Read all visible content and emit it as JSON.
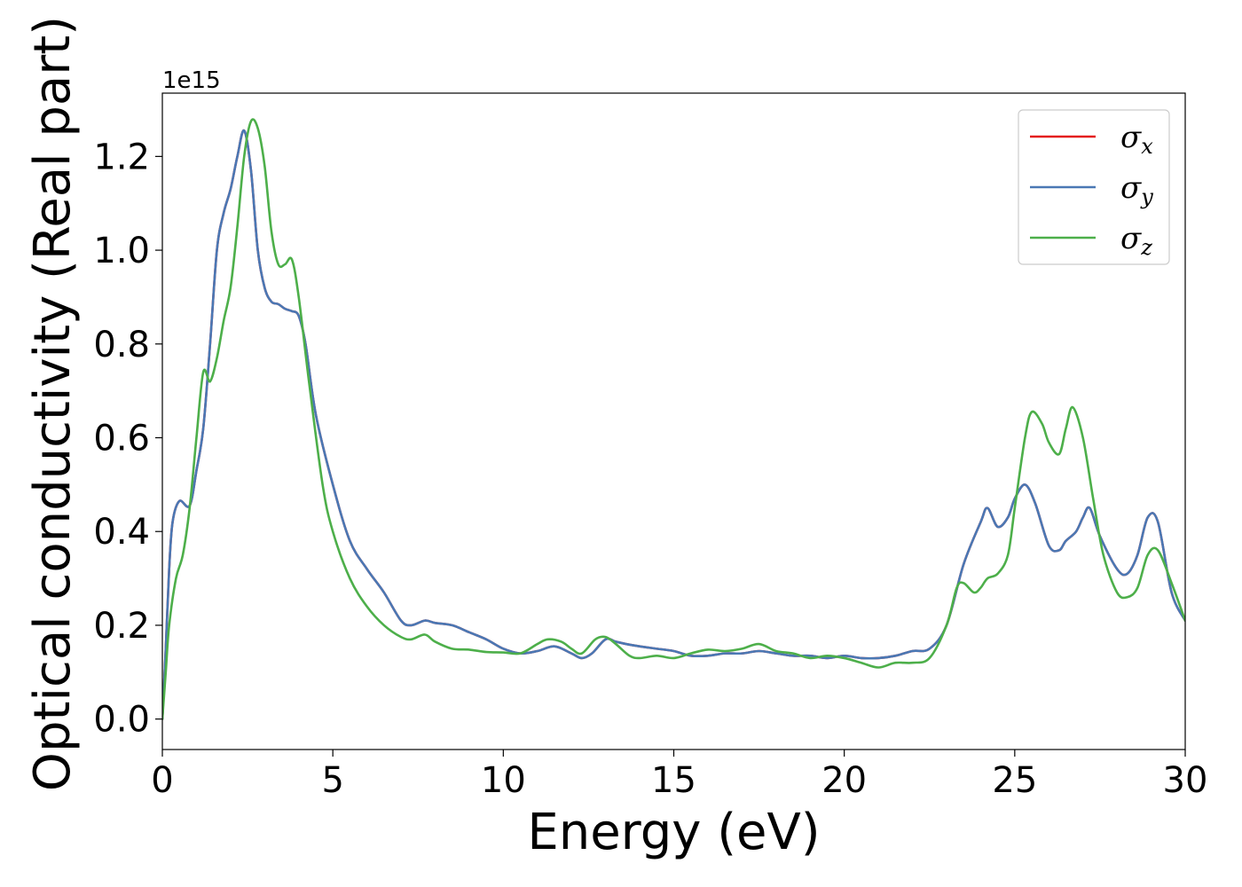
{
  "chart_data": {
    "type": "line",
    "title": "",
    "xlabel": "Energy (eV)",
    "ylabel": "Optical conductivity (Real part)",
    "y_offset_label": "1e15",
    "xlim": [
      0,
      30
    ],
    "ylim": [
      -0.065,
      1.335
    ],
    "xticks": [
      0,
      5,
      10,
      15,
      20,
      25,
      30
    ],
    "xtick_labels": [
      "0",
      "5",
      "10",
      "15",
      "20",
      "25",
      "30"
    ],
    "yticks": [
      0.0,
      0.2,
      0.4,
      0.6,
      0.8,
      1.0,
      1.2
    ],
    "ytick_labels": [
      "0.0",
      "0.2",
      "0.4",
      "0.6",
      "0.8",
      "1.0",
      "1.2"
    ],
    "grid": false,
    "legend_position": "top-right",
    "series": [
      {
        "name": "σx",
        "legend_symbol": "σ",
        "legend_sub": "x",
        "color": "#e41a1c",
        "x": [
          0,
          0.1,
          0.2,
          0.3,
          0.5,
          0.8,
          1.0,
          1.2,
          1.4,
          1.6,
          1.8,
          2.0,
          2.2,
          2.4,
          2.6,
          2.8,
          3.0,
          3.2,
          3.4,
          3.6,
          3.8,
          4.0,
          4.2,
          4.5,
          5.0,
          5.5,
          6.0,
          6.5,
          7.0,
          7.3,
          7.7,
          8.0,
          8.5,
          9.0,
          9.5,
          10.0,
          10.5,
          11.0,
          11.5,
          12.0,
          12.3,
          12.6,
          13.0,
          13.3,
          13.6,
          14.0,
          14.5,
          15.0,
          15.5,
          16.0,
          16.5,
          17.0,
          17.5,
          18.0,
          18.5,
          19.0,
          19.5,
          20.0,
          20.5,
          21.0,
          21.5,
          22.0,
          22.5,
          23.0,
          23.5,
          24.0,
          24.2,
          24.5,
          24.8,
          25.0,
          25.3,
          25.6,
          26.0,
          26.3,
          26.5,
          26.8,
          27.0,
          27.2,
          27.5,
          28.0,
          28.3,
          28.6,
          28.9,
          29.2,
          29.6,
          30.0
        ],
        "y": [
          0.0,
          0.15,
          0.32,
          0.42,
          0.465,
          0.455,
          0.53,
          0.62,
          0.8,
          1.0,
          1.08,
          1.13,
          1.2,
          1.255,
          1.17,
          1.0,
          0.92,
          0.89,
          0.885,
          0.875,
          0.87,
          0.86,
          0.8,
          0.65,
          0.5,
          0.38,
          0.32,
          0.27,
          0.21,
          0.2,
          0.21,
          0.205,
          0.2,
          0.185,
          0.17,
          0.15,
          0.14,
          0.145,
          0.155,
          0.14,
          0.13,
          0.14,
          0.17,
          0.165,
          0.16,
          0.155,
          0.15,
          0.145,
          0.135,
          0.135,
          0.14,
          0.14,
          0.145,
          0.14,
          0.135,
          0.135,
          0.13,
          0.135,
          0.13,
          0.13,
          0.135,
          0.145,
          0.15,
          0.2,
          0.33,
          0.42,
          0.45,
          0.41,
          0.43,
          0.47,
          0.5,
          0.46,
          0.37,
          0.36,
          0.38,
          0.4,
          0.43,
          0.45,
          0.39,
          0.32,
          0.31,
          0.35,
          0.43,
          0.42,
          0.27,
          0.21
        ]
      },
      {
        "name": "σy",
        "legend_symbol": "σ",
        "legend_sub": "y",
        "color": "#4a78b4",
        "x": [
          0,
          0.1,
          0.2,
          0.3,
          0.5,
          0.8,
          1.0,
          1.2,
          1.4,
          1.6,
          1.8,
          2.0,
          2.2,
          2.4,
          2.6,
          2.8,
          3.0,
          3.2,
          3.4,
          3.6,
          3.8,
          4.0,
          4.2,
          4.5,
          5.0,
          5.5,
          6.0,
          6.5,
          7.0,
          7.3,
          7.7,
          8.0,
          8.5,
          9.0,
          9.5,
          10.0,
          10.5,
          11.0,
          11.5,
          12.0,
          12.3,
          12.6,
          13.0,
          13.3,
          13.6,
          14.0,
          14.5,
          15.0,
          15.5,
          16.0,
          16.5,
          17.0,
          17.5,
          18.0,
          18.5,
          19.0,
          19.5,
          20.0,
          20.5,
          21.0,
          21.5,
          22.0,
          22.5,
          23.0,
          23.5,
          24.0,
          24.2,
          24.5,
          24.8,
          25.0,
          25.3,
          25.6,
          26.0,
          26.3,
          26.5,
          26.8,
          27.0,
          27.2,
          27.5,
          28.0,
          28.3,
          28.6,
          28.9,
          29.2,
          29.6,
          30.0
        ],
        "y": [
          0.0,
          0.15,
          0.32,
          0.42,
          0.465,
          0.455,
          0.53,
          0.62,
          0.8,
          1.0,
          1.08,
          1.13,
          1.2,
          1.255,
          1.17,
          1.0,
          0.92,
          0.89,
          0.885,
          0.875,
          0.87,
          0.86,
          0.8,
          0.65,
          0.5,
          0.38,
          0.32,
          0.27,
          0.21,
          0.2,
          0.21,
          0.205,
          0.2,
          0.185,
          0.17,
          0.15,
          0.14,
          0.145,
          0.155,
          0.14,
          0.13,
          0.14,
          0.17,
          0.165,
          0.16,
          0.155,
          0.15,
          0.145,
          0.135,
          0.135,
          0.14,
          0.14,
          0.145,
          0.14,
          0.135,
          0.135,
          0.13,
          0.135,
          0.13,
          0.13,
          0.135,
          0.145,
          0.15,
          0.2,
          0.33,
          0.42,
          0.45,
          0.41,
          0.43,
          0.47,
          0.5,
          0.46,
          0.37,
          0.36,
          0.38,
          0.4,
          0.43,
          0.45,
          0.39,
          0.32,
          0.31,
          0.35,
          0.43,
          0.42,
          0.27,
          0.21
        ]
      },
      {
        "name": "σz",
        "legend_symbol": "σ",
        "legend_sub": "z",
        "color": "#4daf4a",
        "x": [
          0,
          0.1,
          0.2,
          0.4,
          0.6,
          0.8,
          1.0,
          1.2,
          1.4,
          1.6,
          1.8,
          2.0,
          2.2,
          2.4,
          2.6,
          2.8,
          3.0,
          3.2,
          3.4,
          3.6,
          3.8,
          4.0,
          4.3,
          4.7,
          5.0,
          5.5,
          6.0,
          6.5,
          7.0,
          7.3,
          7.7,
          8.0,
          8.5,
          9.0,
          9.5,
          10.0,
          10.5,
          11.0,
          11.3,
          11.7,
          12.0,
          12.3,
          12.7,
          13.0,
          13.3,
          13.7,
          14.0,
          14.5,
          15.0,
          15.5,
          16.0,
          16.5,
          17.0,
          17.5,
          18.0,
          18.5,
          19.0,
          19.5,
          20.0,
          20.5,
          21.0,
          21.5,
          22.0,
          22.5,
          23.0,
          23.3,
          23.5,
          23.8,
          24.0,
          24.2,
          24.5,
          24.8,
          25.0,
          25.3,
          25.5,
          25.8,
          26.0,
          26.3,
          26.5,
          26.7,
          27.0,
          27.3,
          27.6,
          28.0,
          28.3,
          28.6,
          28.9,
          29.2,
          29.6,
          30.0
        ],
        "y": [
          0.0,
          0.1,
          0.2,
          0.3,
          0.35,
          0.45,
          0.6,
          0.74,
          0.72,
          0.77,
          0.85,
          0.92,
          1.05,
          1.2,
          1.275,
          1.26,
          1.18,
          1.04,
          0.97,
          0.97,
          0.98,
          0.9,
          0.72,
          0.5,
          0.4,
          0.3,
          0.24,
          0.2,
          0.175,
          0.17,
          0.18,
          0.165,
          0.15,
          0.148,
          0.143,
          0.142,
          0.14,
          0.16,
          0.17,
          0.165,
          0.15,
          0.14,
          0.17,
          0.175,
          0.16,
          0.135,
          0.13,
          0.135,
          0.13,
          0.14,
          0.148,
          0.145,
          0.15,
          0.16,
          0.145,
          0.14,
          0.13,
          0.135,
          0.13,
          0.12,
          0.11,
          0.12,
          0.12,
          0.13,
          0.2,
          0.28,
          0.29,
          0.27,
          0.28,
          0.3,
          0.31,
          0.35,
          0.45,
          0.6,
          0.655,
          0.63,
          0.59,
          0.565,
          0.62,
          0.665,
          0.6,
          0.47,
          0.35,
          0.27,
          0.26,
          0.28,
          0.35,
          0.36,
          0.29,
          0.21
        ]
      }
    ]
  }
}
